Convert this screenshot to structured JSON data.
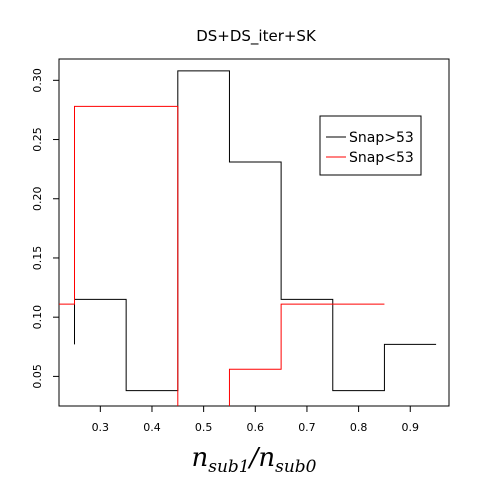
{
  "chart_data": {
    "type": "step",
    "title": "DS+DS_iter+SK",
    "xlabel_parts": {
      "n1": "n",
      "s1": "sub1",
      "slash": "/",
      "n2": "n",
      "s2": "sub0"
    },
    "xlim": [
      0.22,
      0.975
    ],
    "ylim": [
      0.025,
      0.318
    ],
    "xticks": [
      0.3,
      0.4,
      0.5,
      0.6,
      0.7,
      0.8,
      0.9
    ],
    "yticks": [
      0.05,
      0.1,
      0.15,
      0.2,
      0.25,
      0.3
    ],
    "x_tick_labels": [
      "0.3",
      "0.4",
      "0.5",
      "0.6",
      "0.7",
      "0.8",
      "0.9"
    ],
    "y_tick_labels": [
      "0.05",
      "0.10",
      "0.15",
      "0.20",
      "0.25",
      "0.30"
    ],
    "legend": {
      "position": "top-right"
    },
    "series": [
      {
        "name": "Snap>53",
        "color": "#000000",
        "start": [
          0.25,
          0.077
        ],
        "steps": [
          {
            "x0": 0.25,
            "x1": 0.35,
            "y": 0.115
          },
          {
            "x0": 0.35,
            "x1": 0.45,
            "y": 0.038
          },
          {
            "x0": 0.45,
            "x1": 0.55,
            "y": 0.308
          },
          {
            "x0": 0.55,
            "x1": 0.65,
            "y": 0.231
          },
          {
            "x0": 0.65,
            "x1": 0.75,
            "y": 0.115
          },
          {
            "x0": 0.75,
            "x1": 0.85,
            "y": 0.038
          },
          {
            "x0": 0.85,
            "x1": 0.95,
            "y": 0.077
          }
        ]
      },
      {
        "name": "Snap<53",
        "color": "#ff0000",
        "start": [
          0.22,
          0.111
        ],
        "steps": [
          {
            "x0": 0.22,
            "x1": 0.25,
            "y": 0.111
          },
          {
            "x0": 0.25,
            "x1": 0.45,
            "y": 0.278
          },
          {
            "x0": 0.45,
            "x1": 0.55,
            "y": 0.0
          },
          {
            "x0": 0.55,
            "x1": 0.65,
            "y": 0.056
          },
          {
            "x0": 0.65,
            "x1": 0.85,
            "y": 0.111
          }
        ]
      }
    ]
  }
}
